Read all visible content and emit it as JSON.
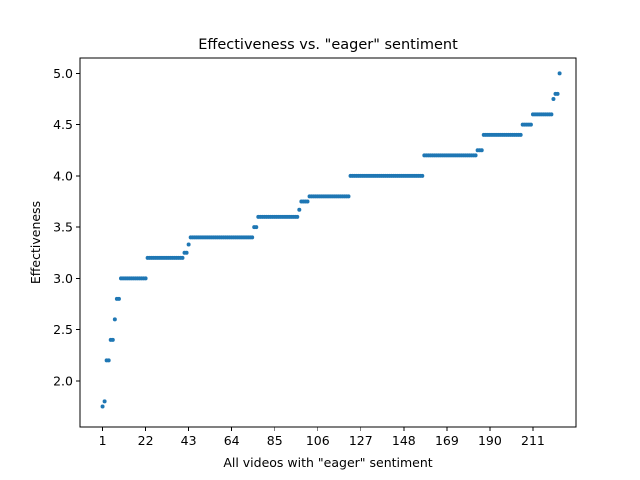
{
  "chart_data": {
    "type": "scatter",
    "title": "Effectiveness vs. \"eager\" sentiment",
    "xlabel": "All videos with \"eager\" sentiment",
    "ylabel": "Effectiveness",
    "xlim": [
      -10.0,
      232.0
    ],
    "ylim": [
      1.55,
      5.15
    ],
    "grid": false,
    "legend": "none",
    "xticks": [
      1,
      22,
      43,
      64,
      85,
      106,
      127,
      148,
      169,
      190,
      211
    ],
    "xtick_labels": [
      "1",
      "22",
      "43",
      "64",
      "85",
      "106",
      "127",
      "148",
      "169",
      "190",
      "211"
    ],
    "yticks": [
      2.0,
      2.5,
      3.0,
      3.5,
      4.0,
      4.5,
      5.0
    ],
    "ytick_labels": [
      "2.0",
      "2.5",
      "3.0",
      "3.5",
      "4.0",
      "4.5",
      "5.0"
    ],
    "marker_color": "#1f77b4",
    "series": [
      {
        "name": "effectiveness",
        "runs": [
          {
            "x_start": 1,
            "x_end": 1,
            "y": 1.75
          },
          {
            "x_start": 2,
            "x_end": 2,
            "y": 1.8
          },
          {
            "x_start": 3,
            "x_end": 4,
            "y": 2.2
          },
          {
            "x_start": 5,
            "x_end": 6,
            "y": 2.4
          },
          {
            "x_start": 7,
            "x_end": 7,
            "y": 2.6
          },
          {
            "x_start": 8,
            "x_end": 9,
            "y": 2.8
          },
          {
            "x_start": 10,
            "x_end": 22,
            "y": 3.0
          },
          {
            "x_start": 23,
            "x_end": 40,
            "y": 3.2
          },
          {
            "x_start": 41,
            "x_end": 42,
            "y": 3.25
          },
          {
            "x_start": 43,
            "x_end": 43,
            "y": 3.33
          },
          {
            "x_start": 44,
            "x_end": 74,
            "y": 3.4
          },
          {
            "x_start": 75,
            "x_end": 76,
            "y": 3.5
          },
          {
            "x_start": 77,
            "x_end": 96,
            "y": 3.6
          },
          {
            "x_start": 97,
            "x_end": 97,
            "y": 3.67
          },
          {
            "x_start": 98,
            "x_end": 101,
            "y": 3.75
          },
          {
            "x_start": 102,
            "x_end": 121,
            "y": 3.8
          },
          {
            "x_start": 122,
            "x_end": 157,
            "y": 4.0
          },
          {
            "x_start": 158,
            "x_end": 183,
            "y": 4.2
          },
          {
            "x_start": 184,
            "x_end": 186,
            "y": 4.25
          },
          {
            "x_start": 187,
            "x_end": 205,
            "y": 4.4
          },
          {
            "x_start": 206,
            "x_end": 210,
            "y": 4.5
          },
          {
            "x_start": 211,
            "x_end": 220,
            "y": 4.6
          },
          {
            "x_start": 221,
            "x_end": 221,
            "y": 4.75
          },
          {
            "x_start": 222,
            "x_end": 223,
            "y": 4.8
          },
          {
            "x_start": 224,
            "x_end": 224,
            "y": 5.0
          }
        ]
      }
    ]
  }
}
